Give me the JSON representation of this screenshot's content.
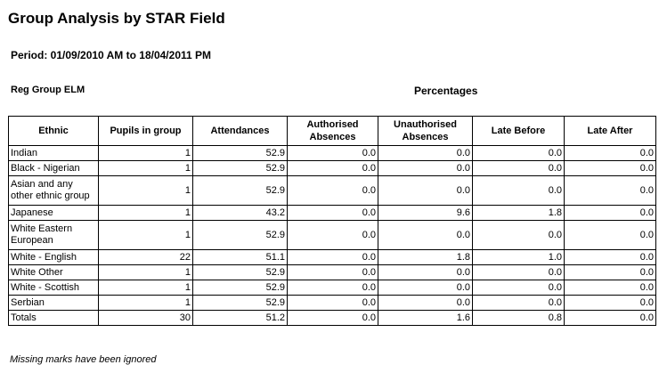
{
  "report": {
    "title": "Group Analysis by STAR Field",
    "period": "Period: 01/09/2010 AM to 18/04/2011 PM",
    "group_label": "Reg Group ELM",
    "percentages_label": "Percentages",
    "footnote": "Missing marks have been ignored"
  },
  "table": {
    "headers": {
      "ethnic": "Ethnic",
      "pupils": "Pupils in group",
      "attendances": "Attendances",
      "authorised": "Authorised Absences",
      "unauthorised": "Unauthorised Absences",
      "late_before": "Late Before",
      "late_after": "Late After"
    },
    "rows": [
      [
        "Indian",
        "1",
        "52.9",
        "0.0",
        "0.0",
        "0.0",
        "0.0"
      ],
      [
        "Black - Nigerian",
        "1",
        "52.9",
        "0.0",
        "0.0",
        "0.0",
        "0.0"
      ],
      [
        "Asian and any other ethnic group",
        "1",
        "52.9",
        "0.0",
        "0.0",
        "0.0",
        "0.0"
      ],
      [
        "Japanese",
        "1",
        "43.2",
        "0.0",
        "9.6",
        "1.8",
        "0.0"
      ],
      [
        "White Eastern European",
        "1",
        "52.9",
        "0.0",
        "0.0",
        "0.0",
        "0.0"
      ],
      [
        "White - English",
        "22",
        "51.1",
        "0.0",
        "1.8",
        "1.0",
        "0.0"
      ],
      [
        "White Other",
        "1",
        "52.9",
        "0.0",
        "0.0",
        "0.0",
        "0.0"
      ],
      [
        "White - Scottish",
        "1",
        "52.9",
        "0.0",
        "0.0",
        "0.0",
        "0.0"
      ],
      [
        "Serbian",
        "1",
        "52.9",
        "0.0",
        "0.0",
        "0.0",
        "0.0"
      ],
      [
        "Totals",
        "30",
        "51.2",
        "0.0",
        "1.6",
        "0.8",
        "0.0"
      ]
    ]
  }
}
